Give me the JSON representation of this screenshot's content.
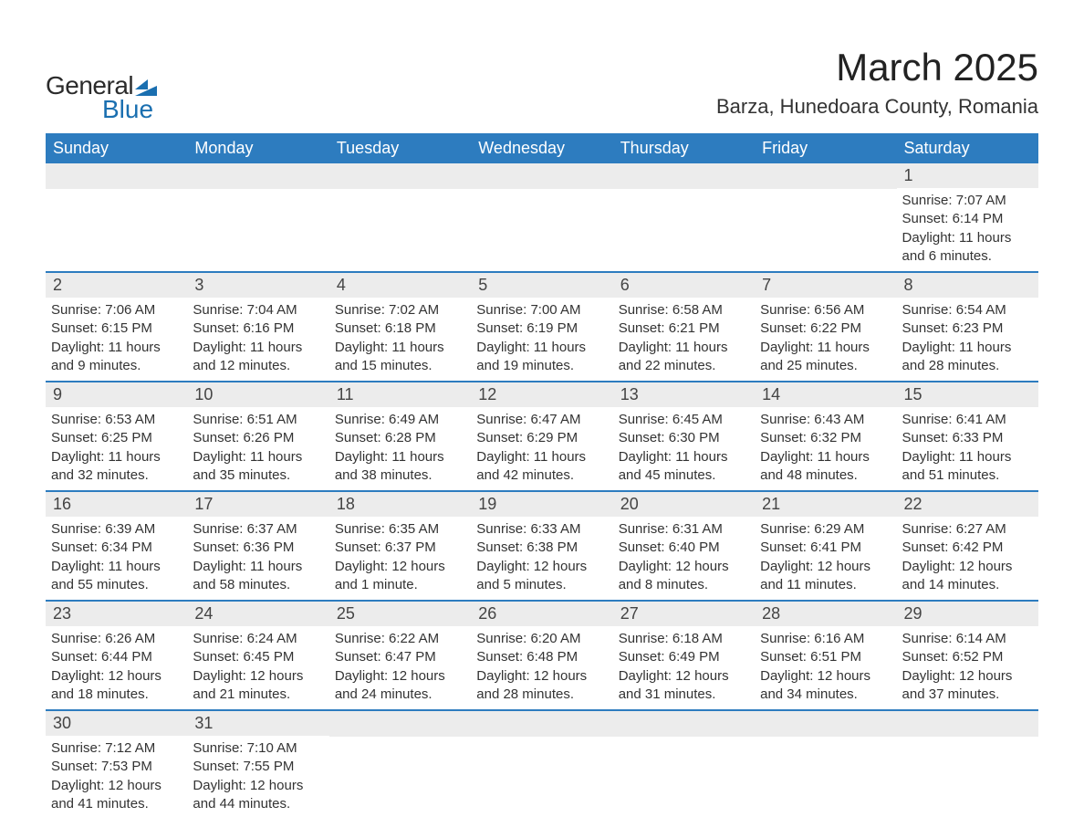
{
  "logo": {
    "general": "General",
    "blue": "Blue",
    "flag_color": "#1a6fb0"
  },
  "title": "March 2025",
  "location": "Barza, Hunedoara County, Romania",
  "header_bg": "#2d7cbf",
  "header_fg": "#ffffff",
  "daynum_bg": "#ececec",
  "row_border": "#2d7cbf",
  "days_of_week": [
    "Sunday",
    "Monday",
    "Tuesday",
    "Wednesday",
    "Thursday",
    "Friday",
    "Saturday"
  ],
  "labels": {
    "sunrise": "Sunrise: ",
    "sunset": "Sunset: ",
    "daylight_pre": "Daylight: ",
    "daylight_mid": " and "
  },
  "weeks": [
    [
      null,
      null,
      null,
      null,
      null,
      null,
      {
        "n": "1",
        "sr": "7:07 AM",
        "ss": "6:14 PM",
        "dh": "11 hours",
        "dm": "6 minutes."
      }
    ],
    [
      {
        "n": "2",
        "sr": "7:06 AM",
        "ss": "6:15 PM",
        "dh": "11 hours",
        "dm": "9 minutes."
      },
      {
        "n": "3",
        "sr": "7:04 AM",
        "ss": "6:16 PM",
        "dh": "11 hours",
        "dm": "12 minutes."
      },
      {
        "n": "4",
        "sr": "7:02 AM",
        "ss": "6:18 PM",
        "dh": "11 hours",
        "dm": "15 minutes."
      },
      {
        "n": "5",
        "sr": "7:00 AM",
        "ss": "6:19 PM",
        "dh": "11 hours",
        "dm": "19 minutes."
      },
      {
        "n": "6",
        "sr": "6:58 AM",
        "ss": "6:21 PM",
        "dh": "11 hours",
        "dm": "22 minutes."
      },
      {
        "n": "7",
        "sr": "6:56 AM",
        "ss": "6:22 PM",
        "dh": "11 hours",
        "dm": "25 minutes."
      },
      {
        "n": "8",
        "sr": "6:54 AM",
        "ss": "6:23 PM",
        "dh": "11 hours",
        "dm": "28 minutes."
      }
    ],
    [
      {
        "n": "9",
        "sr": "6:53 AM",
        "ss": "6:25 PM",
        "dh": "11 hours",
        "dm": "32 minutes."
      },
      {
        "n": "10",
        "sr": "6:51 AM",
        "ss": "6:26 PM",
        "dh": "11 hours",
        "dm": "35 minutes."
      },
      {
        "n": "11",
        "sr": "6:49 AM",
        "ss": "6:28 PM",
        "dh": "11 hours",
        "dm": "38 minutes."
      },
      {
        "n": "12",
        "sr": "6:47 AM",
        "ss": "6:29 PM",
        "dh": "11 hours",
        "dm": "42 minutes."
      },
      {
        "n": "13",
        "sr": "6:45 AM",
        "ss": "6:30 PM",
        "dh": "11 hours",
        "dm": "45 minutes."
      },
      {
        "n": "14",
        "sr": "6:43 AM",
        "ss": "6:32 PM",
        "dh": "11 hours",
        "dm": "48 minutes."
      },
      {
        "n": "15",
        "sr": "6:41 AM",
        "ss": "6:33 PM",
        "dh": "11 hours",
        "dm": "51 minutes."
      }
    ],
    [
      {
        "n": "16",
        "sr": "6:39 AM",
        "ss": "6:34 PM",
        "dh": "11 hours",
        "dm": "55 minutes."
      },
      {
        "n": "17",
        "sr": "6:37 AM",
        "ss": "6:36 PM",
        "dh": "11 hours",
        "dm": "58 minutes."
      },
      {
        "n": "18",
        "sr": "6:35 AM",
        "ss": "6:37 PM",
        "dh": "12 hours",
        "dm": "1 minute."
      },
      {
        "n": "19",
        "sr": "6:33 AM",
        "ss": "6:38 PM",
        "dh": "12 hours",
        "dm": "5 minutes."
      },
      {
        "n": "20",
        "sr": "6:31 AM",
        "ss": "6:40 PM",
        "dh": "12 hours",
        "dm": "8 minutes."
      },
      {
        "n": "21",
        "sr": "6:29 AM",
        "ss": "6:41 PM",
        "dh": "12 hours",
        "dm": "11 minutes."
      },
      {
        "n": "22",
        "sr": "6:27 AM",
        "ss": "6:42 PM",
        "dh": "12 hours",
        "dm": "14 minutes."
      }
    ],
    [
      {
        "n": "23",
        "sr": "6:26 AM",
        "ss": "6:44 PM",
        "dh": "12 hours",
        "dm": "18 minutes."
      },
      {
        "n": "24",
        "sr": "6:24 AM",
        "ss": "6:45 PM",
        "dh": "12 hours",
        "dm": "21 minutes."
      },
      {
        "n": "25",
        "sr": "6:22 AM",
        "ss": "6:47 PM",
        "dh": "12 hours",
        "dm": "24 minutes."
      },
      {
        "n": "26",
        "sr": "6:20 AM",
        "ss": "6:48 PM",
        "dh": "12 hours",
        "dm": "28 minutes."
      },
      {
        "n": "27",
        "sr": "6:18 AM",
        "ss": "6:49 PM",
        "dh": "12 hours",
        "dm": "31 minutes."
      },
      {
        "n": "28",
        "sr": "6:16 AM",
        "ss": "6:51 PM",
        "dh": "12 hours",
        "dm": "34 minutes."
      },
      {
        "n": "29",
        "sr": "6:14 AM",
        "ss": "6:52 PM",
        "dh": "12 hours",
        "dm": "37 minutes."
      }
    ],
    [
      {
        "n": "30",
        "sr": "7:12 AM",
        "ss": "7:53 PM",
        "dh": "12 hours",
        "dm": "41 minutes."
      },
      {
        "n": "31",
        "sr": "7:10 AM",
        "ss": "7:55 PM",
        "dh": "12 hours",
        "dm": "44 minutes."
      },
      null,
      null,
      null,
      null,
      null
    ]
  ]
}
